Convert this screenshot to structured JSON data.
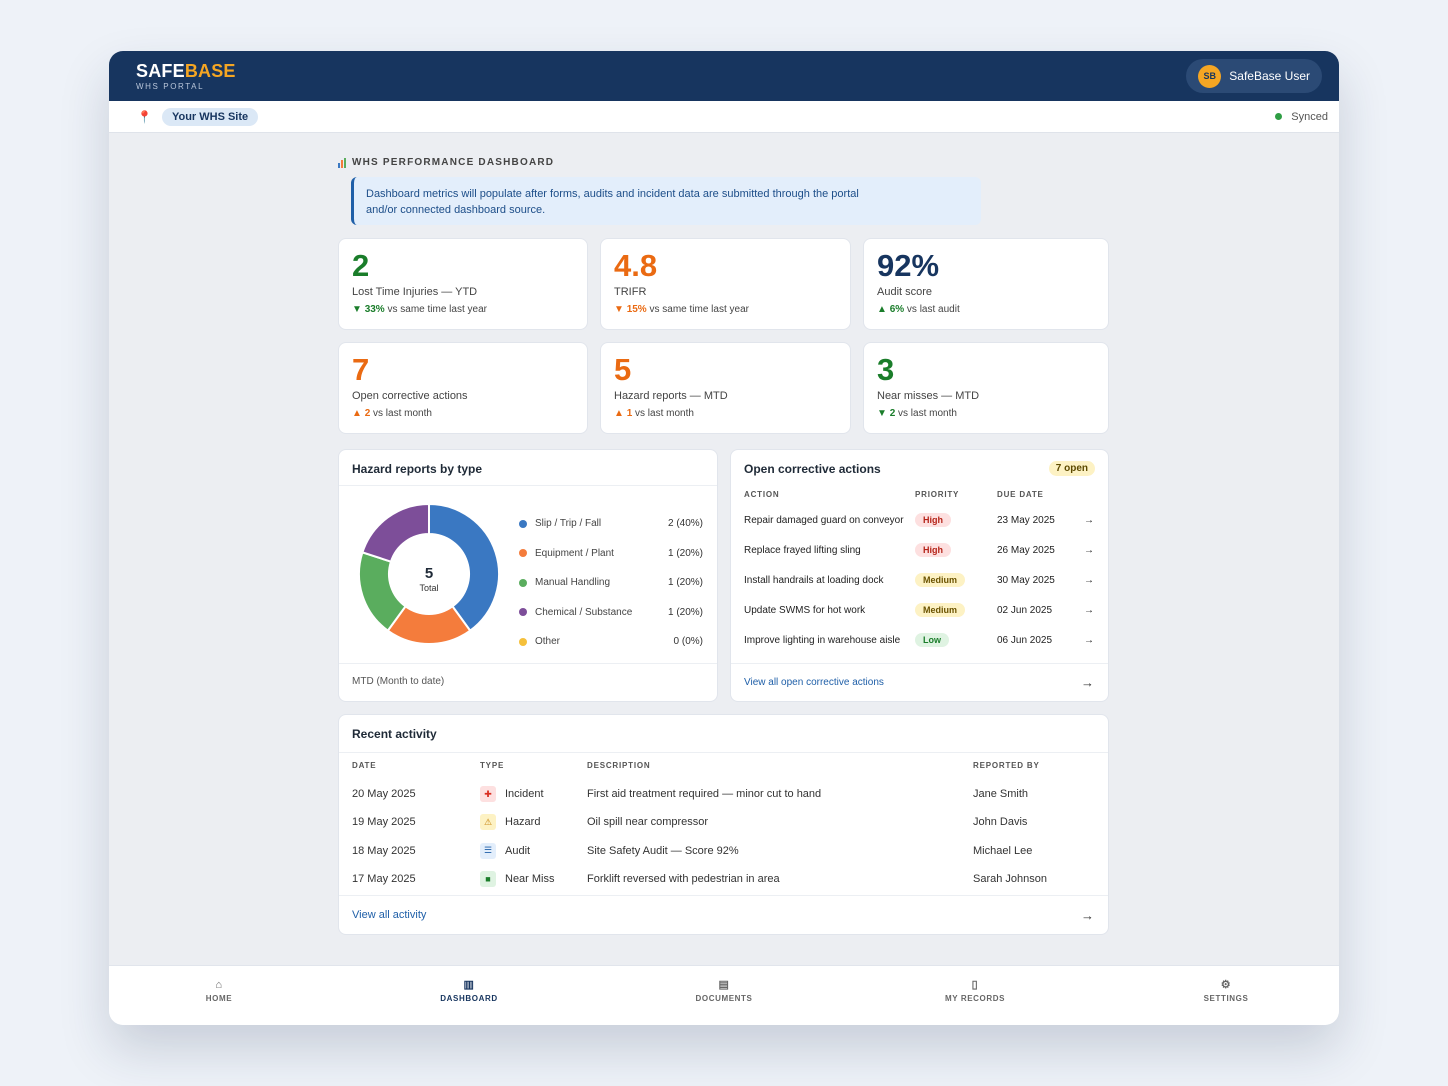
{
  "header": {
    "brand_part1": "SAFE",
    "brand_part2": "BASE",
    "subtitle": "WHS PORTAL",
    "user_initials": "SB",
    "user_name": "SafeBase User"
  },
  "sitebar": {
    "site_name": "Your WHS Site",
    "sync_status": "Synced"
  },
  "dashboard": {
    "title": "WHS PERFORMANCE DASHBOARD",
    "notice_line1": "Dashboard metrics will populate after forms, audits and incident data are submitted through the portal",
    "notice_line2": "and/or connected dashboard source."
  },
  "kpis": [
    {
      "value": "2",
      "label": "Lost Time Injuries — YTD",
      "arrow": "▼",
      "change": "33%",
      "suffix": "vs same time last year",
      "color": "#1a7d2a"
    },
    {
      "value": "4.8",
      "label": "TRIFR",
      "arrow": "▼",
      "change": "15%",
      "suffix": "vs same time last year",
      "color": "#ea6a12"
    },
    {
      "value": "92%",
      "label": "Audit score",
      "arrow": "▲",
      "change": "6%",
      "suffix": "vs last audit",
      "color": "#17355f"
    },
    {
      "value": "7",
      "label": "Open corrective actions",
      "arrow": "▲",
      "change": "2",
      "suffix": "vs last month",
      "color": "#ea6a12"
    },
    {
      "value": "5",
      "label": "Hazard reports — MTD",
      "arrow": "▲",
      "change": "1",
      "suffix": "vs last month",
      "color": "#ea6a12"
    },
    {
      "value": "3",
      "label": "Near misses — MTD",
      "arrow": "▼",
      "change": "2",
      "suffix": "vs last month",
      "color": "#1a7d2a"
    }
  ],
  "hazard_card": {
    "title": "Hazard reports by type",
    "center_value": "5",
    "center_label": "Total",
    "footer": "MTD (Month to date)"
  },
  "chart_data": {
    "type": "pie",
    "title": "Hazard reports by type",
    "categories": [
      "Slip / Trip / Fall",
      "Equipment / Plant",
      "Manual Handling",
      "Chemical / Substance",
      "Other"
    ],
    "values": [
      2,
      1,
      1,
      1,
      0
    ],
    "percent_labels": [
      "2 (40%)",
      "1 (20%)",
      "1 (20%)",
      "1 (20%)",
      "0 (0%)"
    ],
    "colors": [
      "#3a78c2",
      "#f47c3c",
      "#5aad5e",
      "#7d4e99",
      "#f5c03b"
    ],
    "total": 5
  },
  "corrective": {
    "title": "Open corrective actions",
    "badge": "7 open",
    "col_action": "ACTION",
    "col_priority": "PRIORITY",
    "col_due": "DUE DATE",
    "rows": [
      {
        "action": "Repair damaged guard on conveyor",
        "priority": "High",
        "due": "23 May 2025"
      },
      {
        "action": "Replace frayed lifting sling",
        "priority": "High",
        "due": "26 May 2025"
      },
      {
        "action": "Install handrails at loading dock",
        "priority": "Medium",
        "due": "30 May 2025"
      },
      {
        "action": "Update SWMS for hot work",
        "priority": "Medium",
        "due": "02 Jun 2025"
      },
      {
        "action": "Improve lighting in warehouse aisle",
        "priority": "Low",
        "due": "06 Jun 2025"
      }
    ],
    "footer_link": "View all open corrective actions"
  },
  "activity": {
    "title": "Recent activity",
    "col_date": "DATE",
    "col_type": "TYPE",
    "col_desc": "DESCRIPTION",
    "col_by": "REPORTED BY",
    "rows": [
      {
        "date": "20 May 2025",
        "type": "Incident",
        "icon": "incident-icon",
        "desc": "First aid treatment required — minor cut to hand",
        "by": "Jane Smith"
      },
      {
        "date": "19 May 2025",
        "type": "Hazard",
        "icon": "hazard-icon",
        "desc": "Oil spill near compressor",
        "by": "John Davis"
      },
      {
        "date": "18 May 2025",
        "type": "Audit",
        "icon": "audit-icon",
        "desc": "Site Safety Audit — Score 92%",
        "by": "Michael Lee"
      },
      {
        "date": "17 May 2025",
        "type": "Near Miss",
        "icon": "near-miss-icon",
        "desc": "Forklift reversed with pedestrian in area",
        "by": "Sarah Johnson"
      }
    ],
    "footer_link": "View all activity"
  },
  "nav": {
    "items": [
      {
        "label": "HOME",
        "icon": "home-icon"
      },
      {
        "label": "DASHBOARD",
        "icon": "dashboard-icon"
      },
      {
        "label": "DOCUMENTS",
        "icon": "documents-icon"
      },
      {
        "label": "MY RECORDS",
        "icon": "records-icon"
      },
      {
        "label": "SETTINGS",
        "icon": "settings-icon"
      }
    ],
    "active": "DASHBOARD"
  }
}
